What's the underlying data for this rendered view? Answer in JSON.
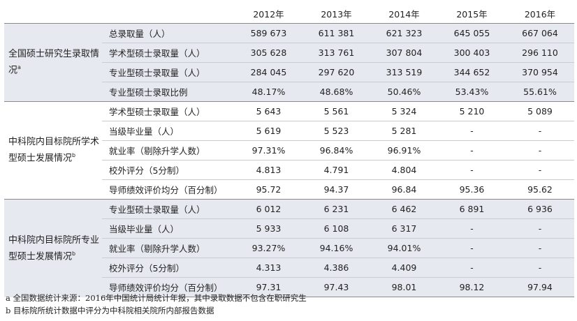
{
  "years": [
    "2012年",
    "2013年",
    "2014年",
    "2015年",
    "2016年"
  ],
  "sections": [
    {
      "group": "全国硕士研究生录取情况",
      "sup": "a",
      "rows": [
        {
          "metric": "总录取量（人）",
          "values": [
            "589 673",
            "611 381",
            "621 323",
            "645 055",
            "667 064"
          ]
        },
        {
          "metric": "学术型硕士录取量（人）",
          "values": [
            "305 628",
            "313 761",
            "307 804",
            "300 403",
            "296 110"
          ]
        },
        {
          "metric": "专业型硕士录取量（人）",
          "values": [
            "284 045",
            "297 620",
            "313 519",
            "344 652",
            "370 954"
          ]
        },
        {
          "metric": "专业型硕士录取比例",
          "values": [
            "48.17%",
            "48.68%",
            "50.46%",
            "53.43%",
            "55.61%"
          ]
        }
      ]
    },
    {
      "group": "中科院内目标院所学术型硕士发展情况",
      "sup": "b",
      "rows": [
        {
          "metric": "学术型硕士录取量（人）",
          "values": [
            "5 643",
            "5 561",
            "5 324",
            "5 210",
            "5 089"
          ]
        },
        {
          "metric": "当级毕业量（人）",
          "values": [
            "5 619",
            "5 523",
            "5 281",
            "-",
            "-"
          ]
        },
        {
          "metric": "就业率（剔除升学人数）",
          "values": [
            "97.31%",
            "96.84%",
            "96.91%",
            "-",
            "-"
          ]
        },
        {
          "metric": "校外评分（5分制）",
          "values": [
            "4.813",
            "4.791",
            "4.804",
            "-",
            "-"
          ]
        },
        {
          "metric": "导师绩效评价均分（百分制）",
          "values": [
            "95.72",
            "94.37",
            "96.84",
            "95.36",
            "95.62"
          ]
        }
      ]
    },
    {
      "group": "中科院内目标院所专业型硕士发展情况",
      "sup": "b",
      "rows": [
        {
          "metric": "专业型硕士录取量（人）",
          "values": [
            "6 012",
            "6 231",
            "6 462",
            "6 891",
            "6 936"
          ]
        },
        {
          "metric": "当级毕业量（人）",
          "values": [
            "5 933",
            "6 108",
            "6 317",
            "-",
            "-"
          ]
        },
        {
          "metric": "就业率（剔除升学人数）",
          "values": [
            "93.27%",
            "94.16%",
            "94.01%",
            "-",
            "-"
          ]
        },
        {
          "metric": "校外评分（5分制）",
          "values": [
            "4.313",
            "4.386",
            "4.409",
            "-",
            "-"
          ]
        },
        {
          "metric": "导师绩效评价均分（百分制）",
          "values": [
            "97.31",
            "97.43",
            "98.01",
            "98.12",
            "97.94"
          ]
        }
      ]
    }
  ],
  "notes": [
    "a 全国数据统计来源：2016年中国统计局统计年报，其中录取数据不包含在职研究生",
    "b 目标院所统计数据中评分为中科院相关院所内部报告数据"
  ]
}
